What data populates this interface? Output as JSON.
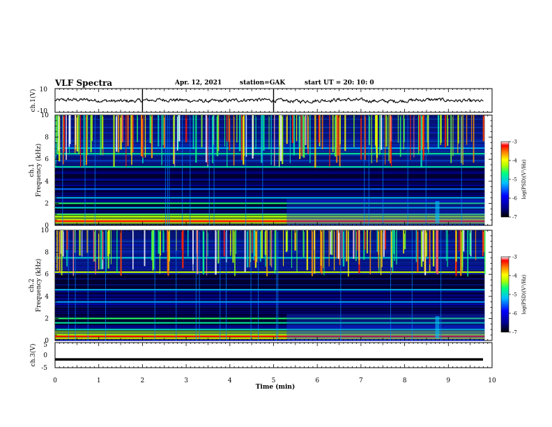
{
  "header": {
    "title": "VLF Spectra",
    "date": "Apr. 12, 2021",
    "station": "station=GAK",
    "start_ut": "start UT =  20: 10: 0"
  },
  "colors": {
    "trace": "#000000",
    "spectrogram_floor": "#000030",
    "colorbar_stops": [
      "#000000",
      "#00008b",
      "#0000ff",
      "#00bfff",
      "#00ff80",
      "#b0ff00",
      "#ffff00",
      "#ff8000",
      "#ff0000",
      "#ffffff"
    ]
  },
  "chart_data": [
    {
      "type": "line",
      "panel": "ch1-waveform",
      "ylabel": "ch.1(V)",
      "ylim": [
        -10,
        10
      ],
      "yticks": [
        "10",
        "-10"
      ],
      "xlim": [
        0,
        10
      ],
      "description_values": {
        "mean_level": 0,
        "typical_amplitude": 1.5
      }
    },
    {
      "type": "heatmap",
      "panel": "ch1-spectrogram",
      "ylabel": "ch.1\nFrequency (kHz)",
      "ylim": [
        0,
        10
      ],
      "yticks": [
        "0",
        "2",
        "4",
        "6",
        "8",
        "10"
      ],
      "xlim": [
        0,
        9.83
      ],
      "colorbar": {
        "label": "log(PSD)(V²/Hz)",
        "range": [
          -7,
          -3
        ],
        "ticks": [
          "-3",
          "-4",
          "-5",
          "-6",
          "-7"
        ]
      },
      "bands_khz": [
        {
          "f": 0.3,
          "level": -3.5
        },
        {
          "f": 0.5,
          "level": -3.8
        },
        {
          "f": 0.8,
          "level": -4.2
        },
        {
          "f": 1.0,
          "level": -4.5
        },
        {
          "f": 1.6,
          "level": -5.0
        },
        {
          "f": 2.0,
          "level": -4.6
        },
        {
          "f": 2.5,
          "level": -5.2
        },
        {
          "f": 3.3,
          "level": -5.5
        },
        {
          "f": 5.3,
          "level": -4.8
        },
        {
          "f": 6.5,
          "level": -4.8
        },
        {
          "f": 7.0,
          "level": -5.2
        }
      ],
      "sferics_above_khz": 5.3
    },
    {
      "type": "heatmap",
      "panel": "ch2-spectrogram",
      "ylabel": "ch.2\nFrequency (kHz)",
      "ylim": [
        0,
        10
      ],
      "yticks": [
        "0",
        "2",
        "4",
        "6",
        "8",
        "10"
      ],
      "xlim": [
        0,
        9.83
      ],
      "colorbar": {
        "label": "log(PSD)(V²/Hz)",
        "range": [
          -7,
          -3
        ],
        "ticks": [
          "-3",
          "-4",
          "-5",
          "-6",
          "-7"
        ]
      },
      "bands_khz": [
        {
          "f": 0.2,
          "level": -3.6
        },
        {
          "f": 0.5,
          "level": -4.3
        },
        {
          "f": 1.0,
          "level": -5.0
        },
        {
          "f": 1.6,
          "level": -4.8
        },
        {
          "f": 2.0,
          "level": -4.6
        },
        {
          "f": 3.5,
          "level": -5.3
        },
        {
          "f": 4.6,
          "level": -5.2
        },
        {
          "f": 6.2,
          "level": -4.2
        },
        {
          "f": 7.5,
          "level": -5.0
        }
      ],
      "sferics_above_khz": 6.0
    },
    {
      "type": "line",
      "panel": "ch3-waveform",
      "ylabel": "ch.3(V)",
      "ylim": [
        -5,
        5
      ],
      "yticks": [
        "5",
        "0",
        "-5"
      ],
      "xlim": [
        0,
        10
      ],
      "xlabel": "Time (min)",
      "xticks": [
        "0",
        "1",
        "2",
        "3",
        "4",
        "5",
        "6",
        "7",
        "8",
        "9",
        "10"
      ],
      "description_values": {
        "mean_level": -1.7
      }
    }
  ]
}
